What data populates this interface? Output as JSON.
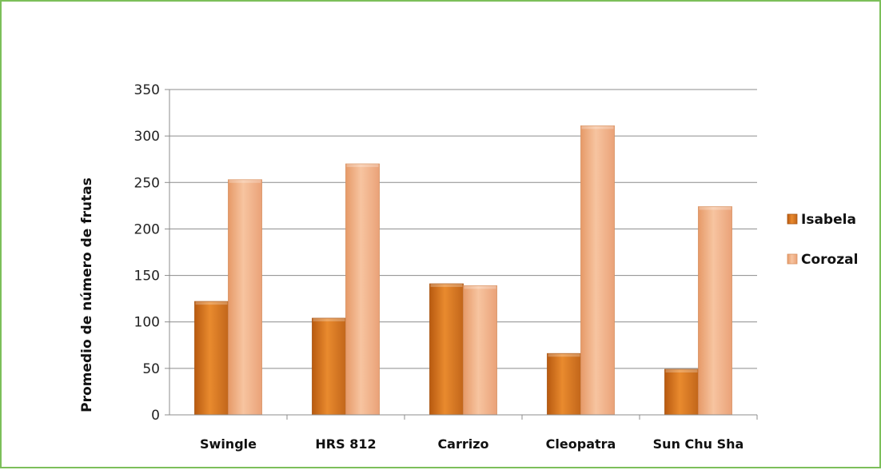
{
  "chart_data": {
    "type": "bar",
    "categories": [
      "Swingle",
      "HRS 812",
      "Carrizo",
      "Cleopatra",
      "Sun Chu Sha"
    ],
    "series": [
      {
        "name": "Isabela",
        "values": [
          122,
          104,
          141,
          66,
          49
        ],
        "color": "#d9771e"
      },
      {
        "name": "Corozal",
        "values": [
          253,
          270,
          139,
          311,
          224
        ],
        "color": "#f0a878"
      }
    ],
    "ylabel": "Promedio de número de frutas",
    "ylim": [
      0,
      350
    ],
    "yticks": [
      0,
      50,
      100,
      150,
      200,
      250,
      300,
      350
    ],
    "grid": true,
    "legend_position": "right"
  }
}
